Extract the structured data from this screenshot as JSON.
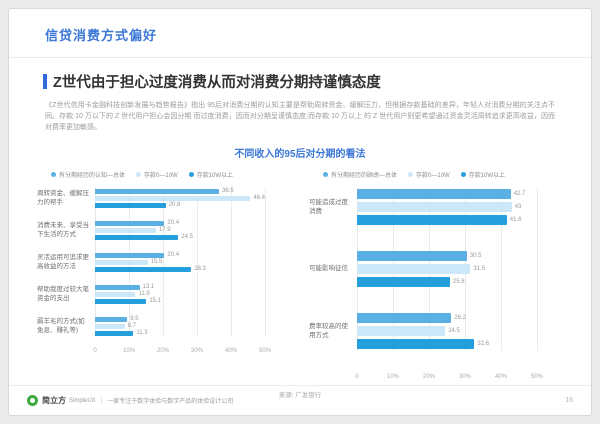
{
  "page": {
    "title": "信贷消费方式偏好",
    "heading": "Z世代由于担心过度消费从而对消费分期持谨慎态度",
    "paragraph": "《Z世代信用卡金融科技创新发展与趋势报告》指出 95后对消费分期的认知主要是帮助周转资金、缓解压力，但根据存款基础的差异，年轻人对消费分期的关注点不同。存款 10 万以下的 Z 世代用户担心会因分期 而过度消费，因而对分期呈谨慎态度;而存款 10 万以上 的 Z 世代用户则更希望通过资金灵活周转追求更高收益，因而对费率更加敏感。",
    "section_title": "不同收入的95后对分期的看法",
    "source": "来源: 广发银行"
  },
  "colors": {
    "accent_blue": "#3B77D6",
    "series_total": "#5AAFE3",
    "series_low_savings": "#CBE7F8",
    "series_high_savings": "#259FDC"
  },
  "chart_data": [
    {
      "type": "bar",
      "orientation": "horizontal",
      "title": "有分期经历的认知",
      "legend_position": "top",
      "grid": true,
      "xlabel": "",
      "ylabel": "",
      "xlim": [
        0,
        50
      ],
      "xticks": [
        "0",
        "10%",
        "20%",
        "30%",
        "40%",
        "50%"
      ],
      "categories": [
        "周转资金、缓解压力的帮手",
        "消费未来、享受当下生活的方式",
        "灵活运用可追求更高收益的方法",
        "帮助我度过较大笔资金的支出",
        "薅羊毛的方式(如免息、赚礼等)"
      ],
      "series": [
        {
          "name": "有分期经历的认知—总体",
          "color": "#5AAFE3",
          "values": [
            36.5,
            20.4,
            20.4,
            13.1,
            9.5
          ]
        },
        {
          "name": "存款0—10W",
          "color": "#CBE7F8",
          "values": [
            46.4,
            17.9,
            15.5,
            11.9,
            8.7
          ]
        },
        {
          "name": "存款10W以上",
          "color": "#259FDC",
          "values": [
            20.8,
            24.5,
            28.3,
            15.1,
            11.3
          ]
        }
      ]
    },
    {
      "type": "bar",
      "orientation": "horizontal",
      "title": "有分期经历的顾虑",
      "legend_position": "top",
      "grid": true,
      "xlabel": "",
      "ylabel": "",
      "xlim": [
        0,
        50
      ],
      "xticks": [
        "0",
        "10%",
        "20%",
        "30%",
        "40%",
        "50%"
      ],
      "categories": [
        "可能造成过度消费",
        "可能影响征信",
        "费率较高的使用方式"
      ],
      "series": [
        {
          "name": "有分期经历的顾虑—总体",
          "color": "#5AAFE3",
          "values": [
            42.7,
            30.5,
            26.2
          ]
        },
        {
          "name": "存款0—10W",
          "color": "#CBE7F8",
          "values": [
            43,
            31.5,
            24.5
          ]
        },
        {
          "name": "存款10W以上",
          "color": "#259FDC",
          "values": [
            41.6,
            25.8,
            32.6
          ]
        }
      ]
    }
  ],
  "footer": {
    "brand": "简立方",
    "brand_sub": "SimpleUX",
    "separator": "|",
    "tagline": "一家专注于数字体验与数字产品的体验设计公司",
    "page_number": "16"
  }
}
